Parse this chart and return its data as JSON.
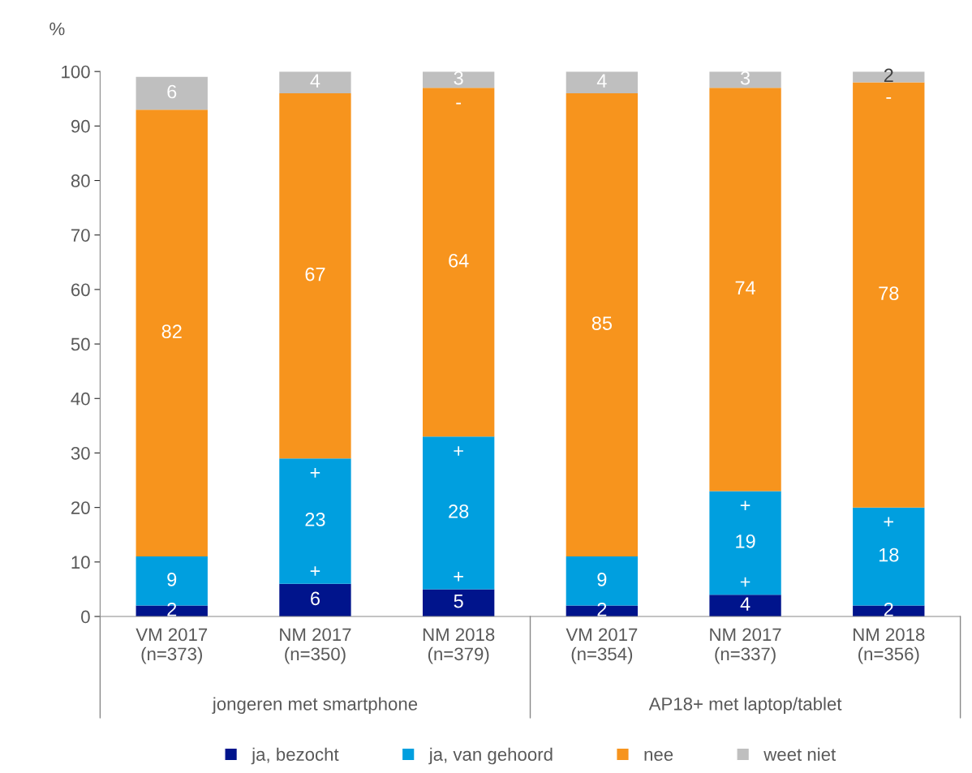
{
  "chart_data": {
    "type": "bar",
    "stacked": true,
    "ylabel": "%",
    "categories": [
      "VM 2017\n(n=373)",
      "NM 2017\n(n=350)",
      "NM 2018\n(n=379)",
      "VM 2017\n(n=354)",
      "NM 2017\n(n=337)",
      "NM 2018\n(n=356)"
    ],
    "series": [
      {
        "name": "ja, bezocht",
        "color": "#00148c",
        "values": [
          2,
          6,
          5,
          2,
          4,
          2
        ]
      },
      {
        "name": "ja, van gehoord",
        "color": "#009fdf",
        "values": [
          9,
          23,
          28,
          9,
          19,
          18
        ]
      },
      {
        "name": "nee",
        "color": "#f7941d",
        "values": [
          82,
          67,
          64,
          85,
          74,
          78
        ]
      },
      {
        "name": "weet niet",
        "color": "#bfbfbf",
        "values": [
          6,
          4,
          3,
          4,
          3,
          2
        ]
      }
    ],
    "ylim": [
      0,
      100
    ],
    "yticks": [
      0,
      10,
      20,
      30,
      40,
      50,
      60,
      70,
      80,
      90,
      100
    ],
    "data_labels": true,
    "grid": false,
    "legend": "bottom",
    "annotations": [
      "jongeren met smartphone",
      "AP18+ met laptop/tablet",
      {
        "text": "+",
        "x": "NM 2017\n(n=350)",
        "y": 6
      },
      {
        "text": "+",
        "x": "NM 2017\n(n=350)",
        "y": 29
      },
      {
        "text": "+",
        "x": "NM 2018\n(n=379)",
        "y": 5
      },
      {
        "text": "+",
        "x": "NM 2018\n(n=379)",
        "y": 33
      },
      {
        "text": "-",
        "x": "NM 2018\n(n=379)",
        "y": 97
      },
      {
        "text": "+",
        "x": "NM 2017\n(n=337)",
        "y": 4
      },
      {
        "text": "+",
        "x": "NM 2017\n(n=337)",
        "y": 23
      },
      {
        "text": "+",
        "x": "NM 2018\n(n=356)",
        "y": 20
      },
      {
        "text": "-",
        "x": "NM 2018\n(n=356)",
        "y": 98
      }
    ]
  }
}
